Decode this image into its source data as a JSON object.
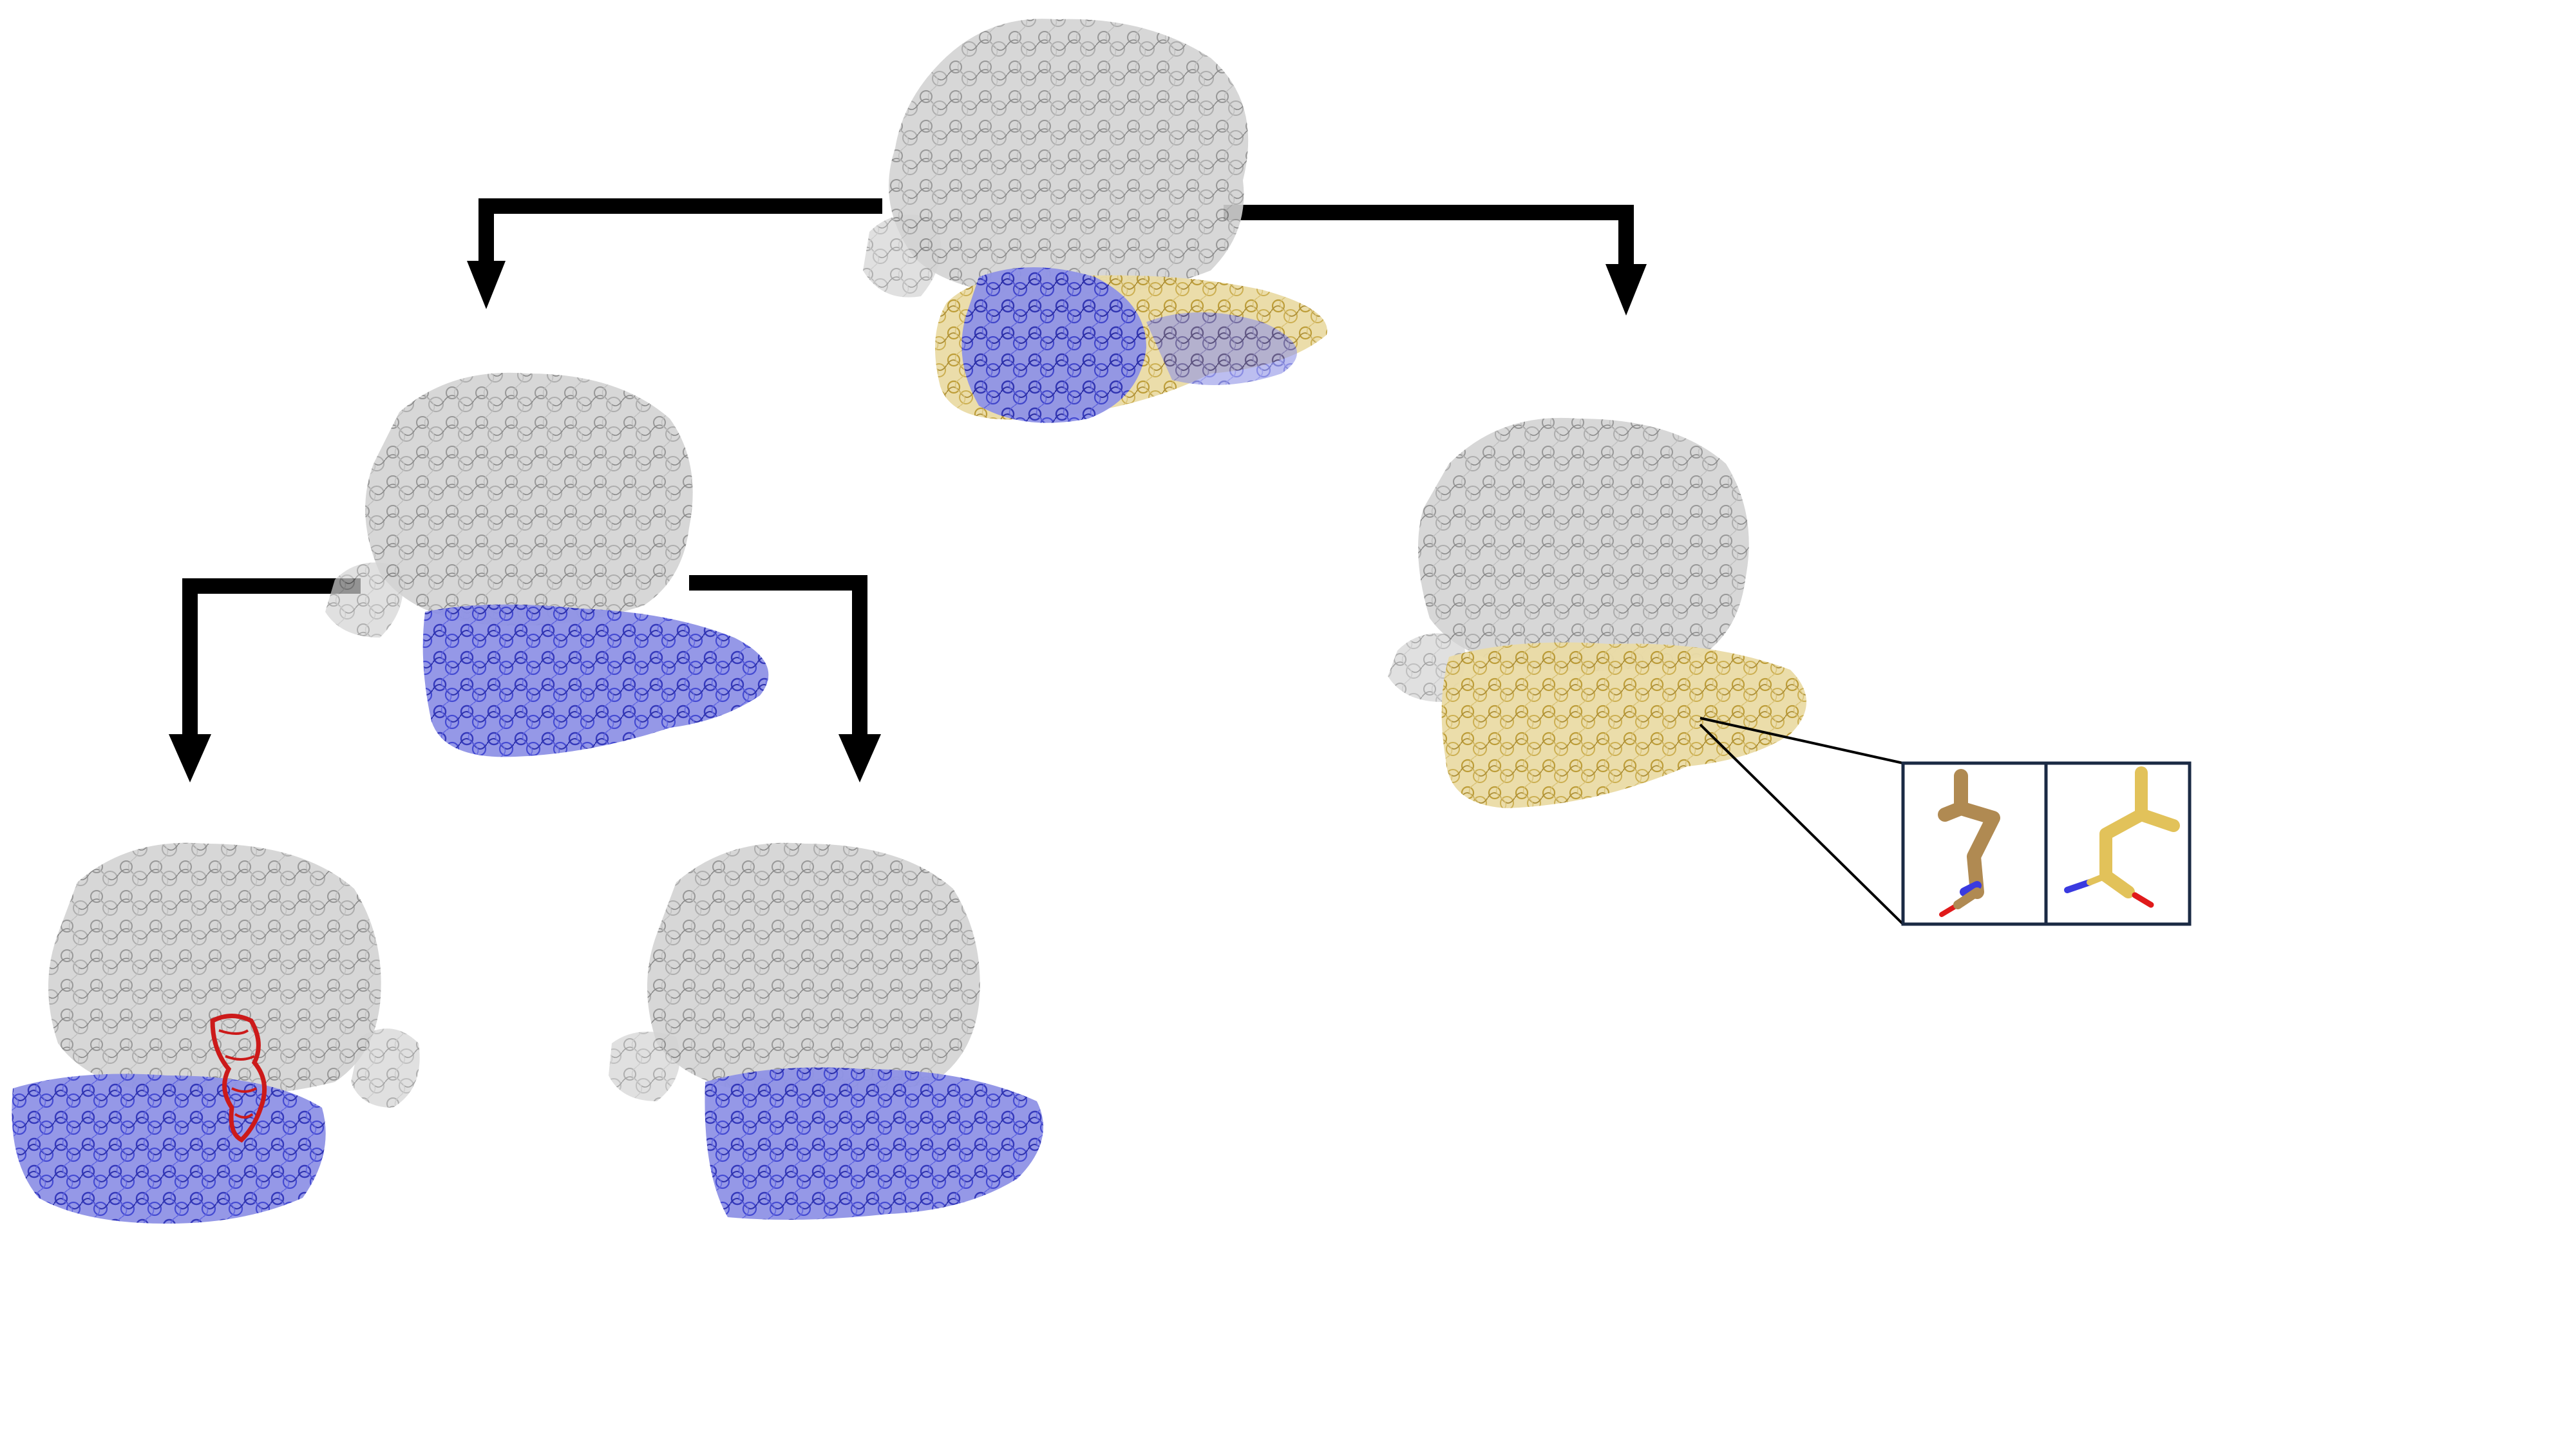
{
  "figure": {
    "colors": {
      "background": "#ffffff",
      "arrow": "#000000",
      "large_subunit": "#b4b4b4",
      "small_subunit_blue": "#3a3fc4",
      "small_subunit_gold": "#cdb35e",
      "trna_red": "#cc1a1a",
      "inset_frame": "#1b2a44",
      "stick_left": "#b08a52",
      "stick_right": "#e2c25a",
      "nitrogen": "#3a3ae0",
      "oxygen": "#e01a1a"
    },
    "nodes": [
      {
        "id": "root",
        "label": "",
        "subunit_colors": [
          "small_subunit_blue",
          "small_subunit_gold"
        ]
      },
      {
        "id": "left-child",
        "label": "",
        "subunit_colors": [
          "small_subunit_blue"
        ]
      },
      {
        "id": "right-child",
        "label": "",
        "subunit_colors": [
          "small_subunit_gold"
        ]
      },
      {
        "id": "left-grandchild-a",
        "label": "",
        "subunit_colors": [
          "small_subunit_blue",
          "trna_red"
        ]
      },
      {
        "id": "left-grandchild-b",
        "label": "",
        "subunit_colors": [
          "small_subunit_blue"
        ]
      }
    ],
    "edges": [
      {
        "from": "root",
        "to": "left-child"
      },
      {
        "from": "root",
        "to": "right-child"
      },
      {
        "from": "left-child",
        "to": "left-grandchild-a"
      },
      {
        "from": "left-child",
        "to": "left-grandchild-b"
      }
    ],
    "inset": {
      "attached_to": "right-child",
      "panels": [
        {
          "id": "conformation-a",
          "stick_color": "stick_left"
        },
        {
          "id": "conformation-b",
          "stick_color": "stick_right"
        }
      ]
    }
  }
}
